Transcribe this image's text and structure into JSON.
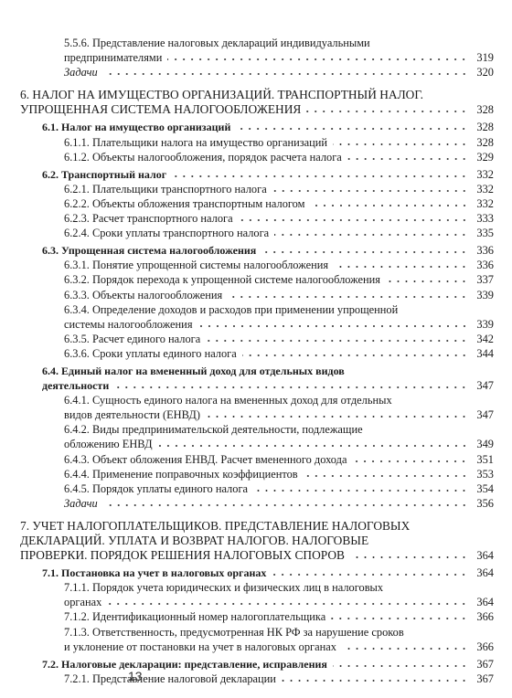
{
  "continued": [
    {
      "lines": [
        "5.5.6. Представление налоговых деклараций индивидуальными",
        "предпринимателями"
      ],
      "page": 319
    }
  ],
  "continued_tasks": {
    "text": "Задачи",
    "page": 320
  },
  "chapters": [
    {
      "lines": [
        "6. НАЛОГ НА ИМУЩЕСТВО ОРГАНИЗАЦИЙ. ТРАНСПОРТНЫЙ НАЛОГ.",
        "УПРОЩЕННАЯ СИСТЕМА НАЛОГООБЛОЖЕНИЯ"
      ],
      "page": 328,
      "sections": [
        {
          "lines": [
            "6.1. Налог на имущество организаций"
          ],
          "page": 328,
          "items": [
            {
              "lines": [
                "6.1.1. Плательщики налога на имущество организаций"
              ],
              "page": 328
            },
            {
              "lines": [
                "6.1.2. Объекты налогообложения, порядок расчета налога"
              ],
              "page": 329
            }
          ]
        },
        {
          "lines": [
            "6.2. Транспортный налог"
          ],
          "page": 332,
          "items": [
            {
              "lines": [
                "6.2.1. Плательщики транспортного налога"
              ],
              "page": 332
            },
            {
              "lines": [
                "6.2.2. Объекты обложения транспортным налогом"
              ],
              "page": 332
            },
            {
              "lines": [
                "6.2.3. Расчет транспортного налога"
              ],
              "page": 333
            },
            {
              "lines": [
                "6.2.4. Сроки уплаты транспортного налога"
              ],
              "page": 335
            }
          ]
        },
        {
          "lines": [
            "6.3. Упрощенная система налогообложения"
          ],
          "page": 336,
          "items": [
            {
              "lines": [
                "6.3.1. Понятие упрощенной системы налогообложения"
              ],
              "page": 336
            },
            {
              "lines": [
                "6.3.2. Порядок перехода к упрощенной системе налогообложения"
              ],
              "page": 337
            },
            {
              "lines": [
                "6.3.3. Объекты налогообложения"
              ],
              "page": 339
            },
            {
              "lines": [
                "6.3.4. Определение доходов и расходов при применении упрощенной",
                "системы налогообложения"
              ],
              "page": 339
            },
            {
              "lines": [
                "6.3.5. Расчет единого налога"
              ],
              "page": 342
            },
            {
              "lines": [
                "6.3.6. Сроки уплаты единого налога"
              ],
              "page": 344
            }
          ]
        },
        {
          "lines": [
            "6.4. Единый налог на вмененный доход для отдельных видов",
            "деятельности"
          ],
          "page": 347,
          "items": [
            {
              "lines": [
                "6.4.1. Сущность единого налога на вмененных доход для отдельных",
                "видов деятельности (ЕНВД)"
              ],
              "page": 347
            },
            {
              "lines": [
                "6.4.2. Виды предпринимательской деятельности, подлежащие",
                "обложению ЕНВД"
              ],
              "page": 349
            },
            {
              "lines": [
                "6.4.3. Объект обложения ЕНВД. Расчет вмененного дохода"
              ],
              "page": 351
            },
            {
              "lines": [
                "6.4.4. Применение поправочных коэффициентов"
              ],
              "page": 353
            },
            {
              "lines": [
                "6.4.5. Порядок уплаты единого налога"
              ],
              "page": 354
            }
          ]
        }
      ],
      "tasks": {
        "text": "Задачи",
        "page": 356
      }
    },
    {
      "lines": [
        "7. УЧЕТ НАЛОГОПЛАТЕЛЬЩИКОВ. ПРЕДСТАВЛЕНИЕ НАЛОГОВЫХ",
        "ДЕКЛАРАЦИЙ. УПЛАТА И ВОЗВРАТ НАЛОГОВ. НАЛОГОВЫЕ",
        "ПРОВЕРКИ. ПОРЯДОК РЕШЕНИЯ НАЛОГОВЫХ СПОРОВ"
      ],
      "page": 364,
      "sections": [
        {
          "lines": [
            "7.1. Постановка на учет в налоговых органах"
          ],
          "page": 364,
          "items": [
            {
              "lines": [
                "7.1.1. Порядок учета юридических и физических лиц в налоговых",
                "органах"
              ],
              "page": 364
            },
            {
              "lines": [
                "7.1.2. Идентификационный номер налогоплательщика"
              ],
              "page": 366
            },
            {
              "lines": [
                "7.1.3. Ответственность, предусмотренная НК РФ за нарушение сроков",
                "и уклонение от постановки на учет в налоговых органах"
              ],
              "page": 366
            }
          ]
        },
        {
          "lines": [
            "7.2. Налоговые декларации: представление, исправления"
          ],
          "page": 367,
          "items": [
            {
              "lines": [
                "7.2.1. Представление налоговой декларации"
              ],
              "page": 367
            }
          ]
        }
      ]
    }
  ],
  "footer": {
    "page_number": 13
  }
}
